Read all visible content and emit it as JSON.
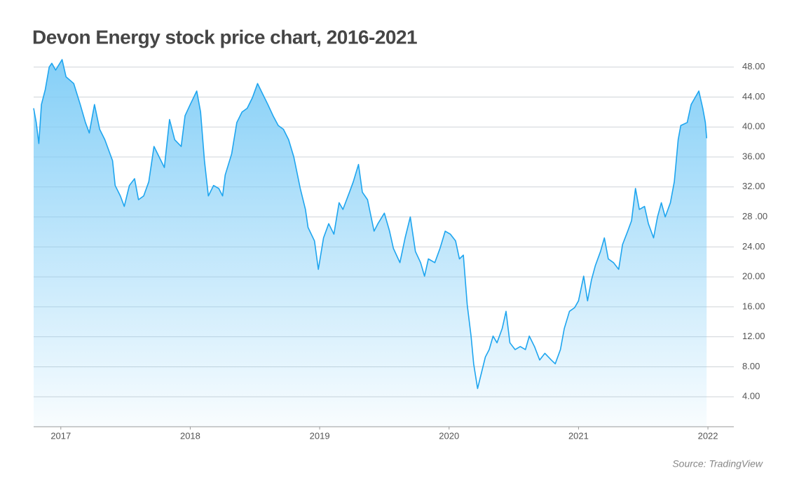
{
  "chart_data": {
    "type": "area",
    "title": "Devon Energy stock price chart, 2016-2021",
    "source": "Source: TradingView",
    "color": "#1ea5ef",
    "fill_color": "#7fcdf7",
    "grid": true,
    "xlim": [
      2016.79,
      2022.2
    ],
    "xticks": [
      2017,
      2018,
      2019,
      2020,
      2021,
      2022
    ],
    "ylim": [
      0,
      49
    ],
    "yticks": [
      {
        "value": 4,
        "label": "4.00"
      },
      {
        "value": 8,
        "label": "8.00"
      },
      {
        "value": 12,
        "label": "12.00"
      },
      {
        "value": 16,
        "label": "16.00"
      },
      {
        "value": 20,
        "label": "20.00"
      },
      {
        "value": 24,
        "label": "24.00"
      },
      {
        "value": 28,
        "label": "28 .00"
      },
      {
        "value": 32,
        "label": "32.00"
      },
      {
        "value": 36,
        "label": "36.00"
      },
      {
        "value": 40,
        "label": "40.00"
      },
      {
        "value": 44,
        "label": "44.00"
      },
      {
        "value": 48,
        "label": "48.00"
      }
    ],
    "x": [
      2016.79,
      2016.81,
      2016.83,
      2016.85,
      2016.88,
      2016.91,
      2016.93,
      2016.96,
      2017.01,
      2017.04,
      2017.1,
      2017.15,
      2017.19,
      2017.22,
      2017.26,
      2017.3,
      2017.34,
      2017.4,
      2017.42,
      2017.46,
      2017.49,
      2017.53,
      2017.57,
      2017.6,
      2017.64,
      2017.68,
      2017.72,
      2017.76,
      2017.8,
      2017.84,
      2017.88,
      2017.93,
      2017.96,
      2018.0,
      2018.05,
      2018.08,
      2018.11,
      2018.14,
      2018.18,
      2018.22,
      2018.25,
      2018.27,
      2018.32,
      2018.36,
      2018.4,
      2018.44,
      2018.48,
      2018.52,
      2018.56,
      2018.6,
      2018.64,
      2018.68,
      2018.72,
      2018.76,
      2018.8,
      2018.85,
      2018.89,
      2018.91,
      2018.96,
      2018.99,
      2019.03,
      2019.07,
      2019.11,
      2019.15,
      2019.18,
      2019.23,
      2019.26,
      2019.3,
      2019.33,
      2019.37,
      2019.42,
      2019.45,
      2019.5,
      2019.54,
      2019.57,
      2019.62,
      2019.66,
      2019.7,
      2019.74,
      2019.78,
      2019.81,
      2019.84,
      2019.89,
      2019.93,
      2019.97,
      2020.01,
      2020.05,
      2020.08,
      2020.11,
      2020.14,
      2020.17,
      2020.19,
      2020.22,
      2020.24,
      2020.28,
      2020.31,
      2020.34,
      2020.37,
      2020.41,
      2020.44,
      2020.47,
      2020.51,
      2020.55,
      2020.59,
      2020.62,
      2020.66,
      2020.7,
      2020.74,
      2020.79,
      2020.82,
      2020.86,
      2020.89,
      2020.93,
      2020.97,
      2021.0,
      2021.04,
      2021.07,
      2021.1,
      2021.13,
      2021.17,
      2021.2,
      2021.23,
      2021.27,
      2021.31,
      2021.34,
      2021.38,
      2021.41,
      2021.44,
      2021.47,
      2021.51,
      2021.54,
      2021.58,
      2021.61,
      2021.64,
      2021.67,
      2021.71,
      2021.74,
      2021.77,
      2021.79,
      2021.84,
      2021.87,
      2021.9,
      2021.93,
      2021.96,
      2021.98,
      2021.99
    ],
    "values": [
      42.5,
      40.6,
      37.8,
      43,
      45,
      48,
      48.5,
      47.6,
      49,
      46.7,
      45.8,
      43,
      40.6,
      39.2,
      43,
      39.7,
      38.3,
      35.5,
      32.2,
      30.8,
      29.4,
      32.2,
      33.1,
      30.3,
      30.8,
      32.7,
      37.4,
      36,
      34.6,
      41,
      38.3,
      37.4,
      41.5,
      43,
      44.8,
      42,
      35.5,
      30.8,
      32.2,
      31.8,
      30.8,
      33.6,
      36.4,
      40.6,
      42,
      42.5,
      43.9,
      45.8,
      44.4,
      43,
      41.5,
      40.2,
      39.7,
      38.3,
      36,
      31.8,
      29,
      26.6,
      24.8,
      21,
      25.2,
      27.1,
      25.7,
      29.9,
      29,
      31.3,
      32.7,
      35,
      31.3,
      30.3,
      26.1,
      27.1,
      28.5,
      26.1,
      23.8,
      21.9,
      25.2,
      28,
      23.4,
      21.9,
      20.1,
      22.4,
      21.9,
      23.8,
      26.1,
      25.7,
      24.8,
      22.4,
      22.9,
      16.3,
      12.1,
      8.4,
      5.1,
      6.5,
      9.3,
      10.3,
      12.1,
      11.2,
      13.1,
      15.4,
      11.2,
      10.3,
      10.7,
      10.3,
      12.1,
      10.7,
      8.9,
      9.8,
      8.9,
      8.4,
      10.3,
      13.1,
      15.4,
      15.9,
      16.8,
      20.1,
      16.8,
      19.6,
      21.5,
      23.4,
      25.2,
      22.4,
      21.9,
      21,
      24.3,
      26.1,
      27.5,
      31.8,
      29,
      29.4,
      27.1,
      25.2,
      28,
      29.9,
      28,
      29.9,
      32.7,
      38.3,
      40.2,
      40.6,
      43,
      43.9,
      44.8,
      42.5,
      40.6,
      38.5
    ]
  }
}
